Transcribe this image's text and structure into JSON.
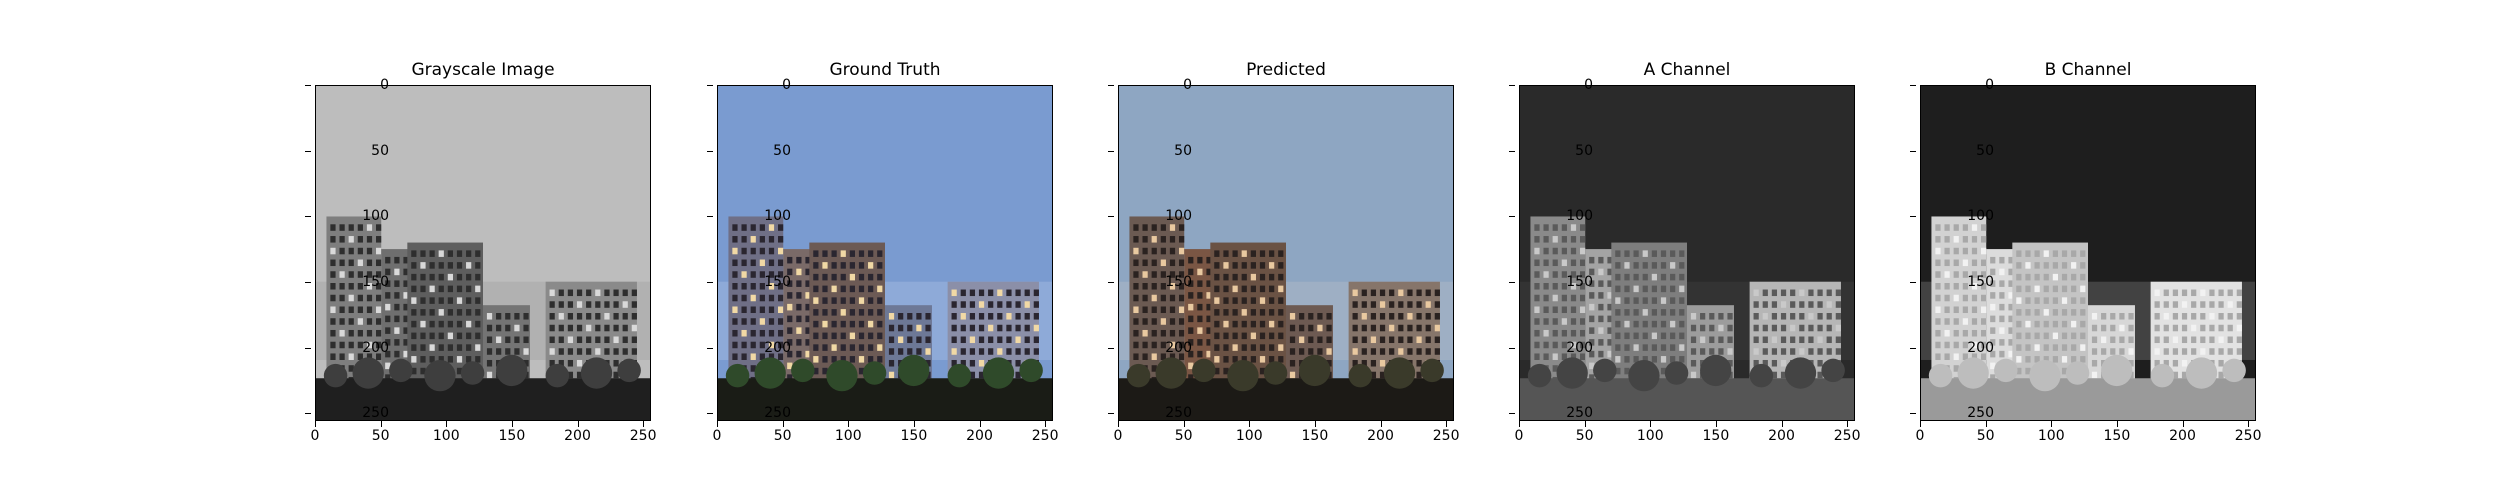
{
  "figure": {
    "panels": [
      {
        "title": "Grayscale Image",
        "mode": "gray"
      },
      {
        "title": "Ground Truth",
        "mode": "truth"
      },
      {
        "title": "Predicted",
        "mode": "pred"
      },
      {
        "title": "A Channel",
        "mode": "achan"
      },
      {
        "title": "B Channel",
        "mode": "bchan"
      }
    ],
    "y_ticks": [
      "0",
      "50",
      "100",
      "150",
      "200",
      "250"
    ],
    "x_ticks": [
      "0",
      "50",
      "100",
      "150",
      "200",
      "250"
    ],
    "image_extent": [
      0,
      256
    ],
    "colors": {
      "gray_sky": "#bdbdbd",
      "truth_sky": "#7a9bd0",
      "pred_sky": "#8ea6c2",
      "a_bg": "#2a2a2a",
      "b_bg": "#1e1e1e"
    }
  }
}
